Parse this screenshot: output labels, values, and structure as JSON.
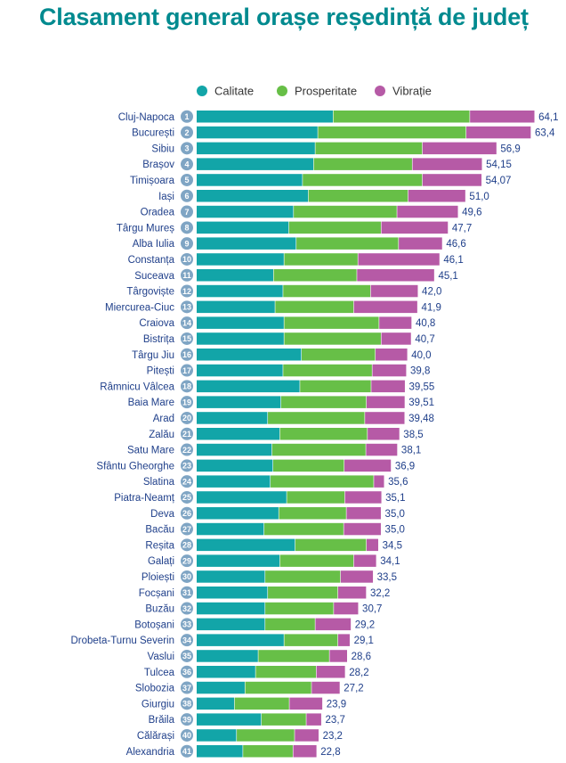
{
  "title": "Clasament general orașe reședință de județ",
  "colors": {
    "title": "#008a8f",
    "calitate": "#12a5a8",
    "prosperitate": "#67bf47",
    "vibratie": "#b65aa6",
    "rank_badge": "#7fa5c4",
    "label": "#1f3f8a"
  },
  "chart_data": {
    "type": "bar",
    "orientation": "horizontal",
    "stacked": true,
    "legend_position": "top",
    "grid": false,
    "series": [
      {
        "name": "Calitate",
        "values": [
          25.9,
          23.0,
          22.5,
          22.2,
          20.1,
          21.2,
          18.4,
          17.5,
          18.9,
          16.6,
          14.6,
          16.4,
          14.9,
          16.6,
          16.6,
          19.9,
          16.4,
          19.6,
          16.0,
          13.5,
          15.8,
          14.3,
          14.5,
          14.0,
          17.1,
          15.6,
          12.8,
          18.7,
          15.8,
          13.0,
          13.5,
          13.0,
          13.0,
          16.6,
          11.7,
          11.2,
          9.2,
          7.2,
          12.3,
          7.6,
          8.8
        ]
      },
      {
        "name": "Prosperitate",
        "values": [
          25.9,
          28.1,
          20.3,
          18.7,
          22.7,
          18.9,
          19.6,
          17.5,
          19.4,
          14.0,
          15.8,
          16.6,
          14.9,
          18.0,
          18.4,
          14.0,
          16.9,
          13.5,
          16.2,
          18.4,
          16.6,
          17.8,
          13.5,
          19.6,
          11.0,
          12.8,
          15.1,
          13.5,
          14.0,
          14.3,
          13.3,
          13.0,
          9.5,
          10.2,
          13.5,
          11.5,
          12.6,
          10.4,
          8.5,
          11.0,
          9.5
        ]
      },
      {
        "name": "Vibrație",
        "values": [
          12.3,
          12.3,
          14.1,
          13.25,
          11.27,
          10.9,
          11.6,
          12.7,
          8.3,
          15.5,
          14.7,
          9.0,
          12.1,
          6.2,
          5.7,
          6.1,
          6.5,
          6.45,
          7.31,
          7.58,
          6.1,
          6.0,
          8.9,
          2.0,
          7.0,
          6.6,
          7.1,
          2.3,
          4.3,
          6.2,
          5.4,
          4.7,
          6.8,
          2.3,
          3.4,
          5.5,
          5.4,
          6.3,
          2.9,
          4.6,
          4.5
        ]
      }
    ],
    "rows": [
      {
        "rank": "1",
        "city": "Cluj-Napoca",
        "total": "64,1"
      },
      {
        "rank": "2",
        "city": "București",
        "total": "63,4"
      },
      {
        "rank": "3",
        "city": "Sibiu",
        "total": "56,9"
      },
      {
        "rank": "4",
        "city": "Brașov",
        "total": "54,15"
      },
      {
        "rank": "5",
        "city": "Timișoara",
        "total": "54,07"
      },
      {
        "rank": "6",
        "city": "Iași",
        "total": "51,0"
      },
      {
        "rank": "7",
        "city": "Oradea",
        "total": "49,6"
      },
      {
        "rank": "8",
        "city": "Târgu Mureș",
        "total": "47,7"
      },
      {
        "rank": "9",
        "city": "Alba Iulia",
        "total": "46,6"
      },
      {
        "rank": "10",
        "city": "Constanța",
        "total": "46,1"
      },
      {
        "rank": "11",
        "city": "Suceava",
        "total": "45,1"
      },
      {
        "rank": "12",
        "city": "Târgoviște",
        "total": "42,0"
      },
      {
        "rank": "13",
        "city": "Miercurea-Ciuc",
        "total": "41,9"
      },
      {
        "rank": "14",
        "city": "Craiova",
        "total": "40,8"
      },
      {
        "rank": "15",
        "city": "Bistrița",
        "total": "40,7"
      },
      {
        "rank": "16",
        "city": "Târgu Jiu",
        "total": "40,0"
      },
      {
        "rank": "17",
        "city": "Pitești",
        "total": "39,8"
      },
      {
        "rank": "18",
        "city": "Râmnicu Vâlcea",
        "total": "39,55"
      },
      {
        "rank": "19",
        "city": "Baia Mare",
        "total": "39,51"
      },
      {
        "rank": "20",
        "city": "Arad",
        "total": "39,48"
      },
      {
        "rank": "21",
        "city": "Zalău",
        "total": "38,5"
      },
      {
        "rank": "22",
        "city": "Satu Mare",
        "total": "38,1"
      },
      {
        "rank": "23",
        "city": "Sfântu Gheorghe",
        "total": "36,9"
      },
      {
        "rank": "24",
        "city": "Slatina",
        "total": "35,6"
      },
      {
        "rank": "25",
        "city": "Piatra-Neamț",
        "total": "35,1"
      },
      {
        "rank": "26",
        "city": "Deva",
        "total": "35,0"
      },
      {
        "rank": "27",
        "city": "Bacău",
        "total": "35,0"
      },
      {
        "rank": "28",
        "city": "Reșita",
        "total": "34,5"
      },
      {
        "rank": "29",
        "city": "Galați",
        "total": "34,1"
      },
      {
        "rank": "30",
        "city": "Ploiești",
        "total": "33,5"
      },
      {
        "rank": "31",
        "city": "Focșani",
        "total": "32,2"
      },
      {
        "rank": "32",
        "city": "Buzău",
        "total": "30,7"
      },
      {
        "rank": "33",
        "city": "Botoșani",
        "total": "29,2"
      },
      {
        "rank": "34",
        "city": "Drobeta-Turnu Severin",
        "total": "29,1"
      },
      {
        "rank": "35",
        "city": "Vaslui",
        "total": "28,6"
      },
      {
        "rank": "36",
        "city": "Tulcea",
        "total": "28,2"
      },
      {
        "rank": "37",
        "city": "Slobozia",
        "total": "27,2"
      },
      {
        "rank": "38",
        "city": "Giurgiu",
        "total": "23,9"
      },
      {
        "rank": "39",
        "city": "Brăila",
        "total": "23,7"
      },
      {
        "rank": "40",
        "city": "Călărași",
        "total": "23,2"
      },
      {
        "rank": "41",
        "city": "Alexandria",
        "total": "22,8"
      }
    ]
  }
}
